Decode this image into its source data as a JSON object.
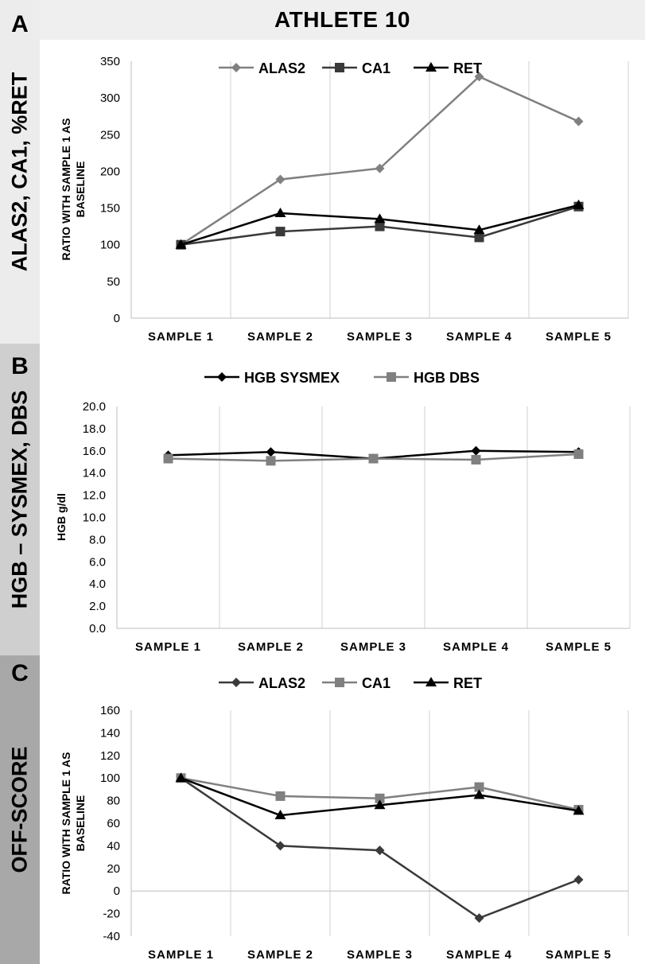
{
  "title": "ATHLETE 10",
  "panels": [
    {
      "letter": "A",
      "side_label": "ALAS2, CA1, %RET"
    },
    {
      "letter": "B",
      "side_label": "HGB – SYSMEX, DBS"
    },
    {
      "letter": "C",
      "side_label": "OFF-SCORE"
    }
  ],
  "chart_data": [
    {
      "type": "line",
      "panel": "A",
      "title": "",
      "xlabel": "",
      "ylabel_lines": [
        "RATIO WITH SAMPLE 1 AS",
        "BASELINE"
      ],
      "categories": [
        "SAMPLE 1",
        "SAMPLE 2",
        "SAMPLE 3",
        "SAMPLE 4",
        "SAMPLE 5"
      ],
      "ylim": [
        0,
        350
      ],
      "yticks": [
        "0",
        "50",
        "100",
        "150",
        "200",
        "250",
        "300",
        "350"
      ],
      "grid": "vertical",
      "legend": "top-center",
      "series": [
        {
          "name": "ALAS2",
          "marker": "diamond",
          "color": "#808080",
          "values": [
            100,
            189,
            204,
            329,
            268
          ]
        },
        {
          "name": "CA1",
          "marker": "square",
          "color": "#3a3a3a",
          "values": [
            100,
            118,
            125,
            110,
            152
          ]
        },
        {
          "name": "RET",
          "marker": "triangle",
          "color": "#000000",
          "values": [
            100,
            143,
            135,
            120,
            154
          ]
        }
      ]
    },
    {
      "type": "line",
      "panel": "B",
      "title": "",
      "xlabel": "",
      "ylabel_lines": [
        "HGB g/dl"
      ],
      "categories": [
        "SAMPLE 1",
        "SAMPLE 2",
        "SAMPLE 3",
        "SAMPLE 4",
        "SAMPLE 5"
      ],
      "ylim": [
        0,
        20
      ],
      "yticks": [
        "0.0",
        "2.0",
        "4.0",
        "6.0",
        "8.0",
        "10.0",
        "12.0",
        "14.0",
        "16.0",
        "18.0",
        "20.0"
      ],
      "grid": "vertical",
      "legend": "top-center",
      "series": [
        {
          "name": "HGB SYSMEX",
          "marker": "diamond",
          "color": "#000000",
          "values": [
            15.6,
            15.9,
            15.3,
            16.0,
            15.9
          ]
        },
        {
          "name": "HGB DBS",
          "marker": "square",
          "color": "#808080",
          "values": [
            15.3,
            15.1,
            15.3,
            15.2,
            15.7
          ]
        }
      ]
    },
    {
      "type": "line",
      "panel": "C",
      "title": "",
      "xlabel": "",
      "ylabel_lines": [
        "RATIO WITH SAMPLE 1 AS",
        "BASELINE"
      ],
      "categories": [
        "SAMPLE 1",
        "SAMPLE 2",
        "SAMPLE 3",
        "SAMPLE 4",
        "SAMPLE 5"
      ],
      "ylim": [
        -40,
        160
      ],
      "yticks": [
        "-40",
        "-20",
        "0",
        "20",
        "40",
        "60",
        "80",
        "100",
        "120",
        "140",
        "160"
      ],
      "grid": "vertical",
      "legend": "top-center",
      "series": [
        {
          "name": "ALAS2",
          "marker": "diamond",
          "color": "#3a3a3a",
          "values": [
            100,
            40,
            36,
            -24,
            10
          ]
        },
        {
          "name": "CA1",
          "marker": "square",
          "color": "#808080",
          "values": [
            100,
            84,
            82,
            92,
            72
          ]
        },
        {
          "name": "RET",
          "marker": "triangle",
          "color": "#000000",
          "values": [
            100,
            67,
            76,
            85,
            71
          ]
        }
      ]
    }
  ]
}
